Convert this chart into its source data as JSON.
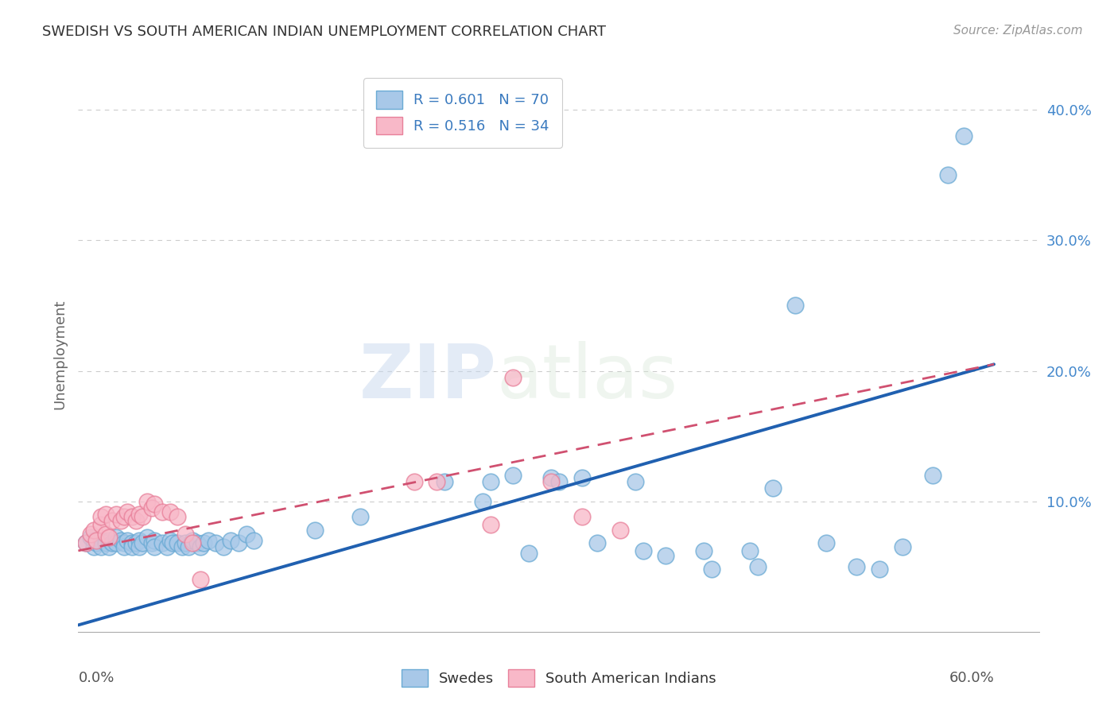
{
  "title": "SWEDISH VS SOUTH AMERICAN INDIAN UNEMPLOYMENT CORRELATION CHART",
  "source": "Source: ZipAtlas.com",
  "ylabel": "Unemployment",
  "yticks": [
    0.0,
    0.1,
    0.2,
    0.3,
    0.4
  ],
  "ytick_labels": [
    "",
    "10.0%",
    "20.0%",
    "30.0%",
    "40.0%"
  ],
  "xlim": [
    0.0,
    0.63
  ],
  "ylim": [
    -0.005,
    0.43
  ],
  "blue_color": "#a8c8e8",
  "blue_edge": "#6aaad4",
  "pink_color": "#f8b8c8",
  "pink_edge": "#e8809a",
  "blue_scatter": [
    [
      0.005,
      0.068
    ],
    [
      0.008,
      0.072
    ],
    [
      0.01,
      0.065
    ],
    [
      0.01,
      0.07
    ],
    [
      0.012,
      0.068
    ],
    [
      0.015,
      0.07
    ],
    [
      0.015,
      0.065
    ],
    [
      0.018,
      0.068
    ],
    [
      0.02,
      0.07
    ],
    [
      0.02,
      0.065
    ],
    [
      0.022,
      0.068
    ],
    [
      0.025,
      0.072
    ],
    [
      0.025,
      0.068
    ],
    [
      0.028,
      0.07
    ],
    [
      0.03,
      0.068
    ],
    [
      0.03,
      0.065
    ],
    [
      0.032,
      0.07
    ],
    [
      0.035,
      0.068
    ],
    [
      0.035,
      0.065
    ],
    [
      0.038,
      0.068
    ],
    [
      0.04,
      0.07
    ],
    [
      0.04,
      0.065
    ],
    [
      0.042,
      0.068
    ],
    [
      0.045,
      0.072
    ],
    [
      0.048,
      0.068
    ],
    [
      0.05,
      0.07
    ],
    [
      0.05,
      0.065
    ],
    [
      0.055,
      0.068
    ],
    [
      0.058,
      0.065
    ],
    [
      0.06,
      0.07
    ],
    [
      0.062,
      0.068
    ],
    [
      0.065,
      0.068
    ],
    [
      0.068,
      0.065
    ],
    [
      0.07,
      0.068
    ],
    [
      0.072,
      0.065
    ],
    [
      0.075,
      0.07
    ],
    [
      0.078,
      0.068
    ],
    [
      0.08,
      0.065
    ],
    [
      0.082,
      0.068
    ],
    [
      0.085,
      0.07
    ],
    [
      0.09,
      0.068
    ],
    [
      0.095,
      0.065
    ],
    [
      0.1,
      0.07
    ],
    [
      0.105,
      0.068
    ],
    [
      0.11,
      0.075
    ],
    [
      0.115,
      0.07
    ],
    [
      0.155,
      0.078
    ],
    [
      0.185,
      0.088
    ],
    [
      0.24,
      0.115
    ],
    [
      0.265,
      0.1
    ],
    [
      0.27,
      0.115
    ],
    [
      0.285,
      0.12
    ],
    [
      0.295,
      0.06
    ],
    [
      0.31,
      0.118
    ],
    [
      0.315,
      0.115
    ],
    [
      0.33,
      0.118
    ],
    [
      0.34,
      0.068
    ],
    [
      0.365,
      0.115
    ],
    [
      0.37,
      0.062
    ],
    [
      0.385,
      0.058
    ],
    [
      0.41,
      0.062
    ],
    [
      0.415,
      0.048
    ],
    [
      0.44,
      0.062
    ],
    [
      0.445,
      0.05
    ],
    [
      0.455,
      0.11
    ],
    [
      0.47,
      0.25
    ],
    [
      0.49,
      0.068
    ],
    [
      0.51,
      0.05
    ],
    [
      0.525,
      0.048
    ],
    [
      0.54,
      0.065
    ],
    [
      0.56,
      0.12
    ],
    [
      0.57,
      0.35
    ],
    [
      0.58,
      0.38
    ]
  ],
  "pink_scatter": [
    [
      0.005,
      0.068
    ],
    [
      0.008,
      0.075
    ],
    [
      0.01,
      0.078
    ],
    [
      0.012,
      0.07
    ],
    [
      0.015,
      0.082
    ],
    [
      0.015,
      0.088
    ],
    [
      0.018,
      0.075
    ],
    [
      0.018,
      0.09
    ],
    [
      0.02,
      0.072
    ],
    [
      0.022,
      0.085
    ],
    [
      0.025,
      0.09
    ],
    [
      0.028,
      0.085
    ],
    [
      0.03,
      0.088
    ],
    [
      0.032,
      0.092
    ],
    [
      0.035,
      0.088
    ],
    [
      0.038,
      0.085
    ],
    [
      0.04,
      0.09
    ],
    [
      0.042,
      0.088
    ],
    [
      0.045,
      0.1
    ],
    [
      0.048,
      0.095
    ],
    [
      0.05,
      0.098
    ],
    [
      0.055,
      0.092
    ],
    [
      0.06,
      0.092
    ],
    [
      0.065,
      0.088
    ],
    [
      0.07,
      0.075
    ],
    [
      0.075,
      0.068
    ],
    [
      0.08,
      0.04
    ],
    [
      0.22,
      0.115
    ],
    [
      0.235,
      0.115
    ],
    [
      0.27,
      0.082
    ],
    [
      0.285,
      0.195
    ],
    [
      0.31,
      0.115
    ],
    [
      0.33,
      0.088
    ],
    [
      0.355,
      0.078
    ]
  ],
  "watermark_zip": "ZIP",
  "watermark_atlas": "atlas",
  "blue_line_x": [
    0.0,
    0.6
  ],
  "blue_line_y": [
    0.005,
    0.205
  ],
  "pink_line_x": [
    0.0,
    0.6
  ],
  "pink_line_y": [
    0.062,
    0.205
  ],
  "pink_line_dashes": [
    6,
    4
  ]
}
